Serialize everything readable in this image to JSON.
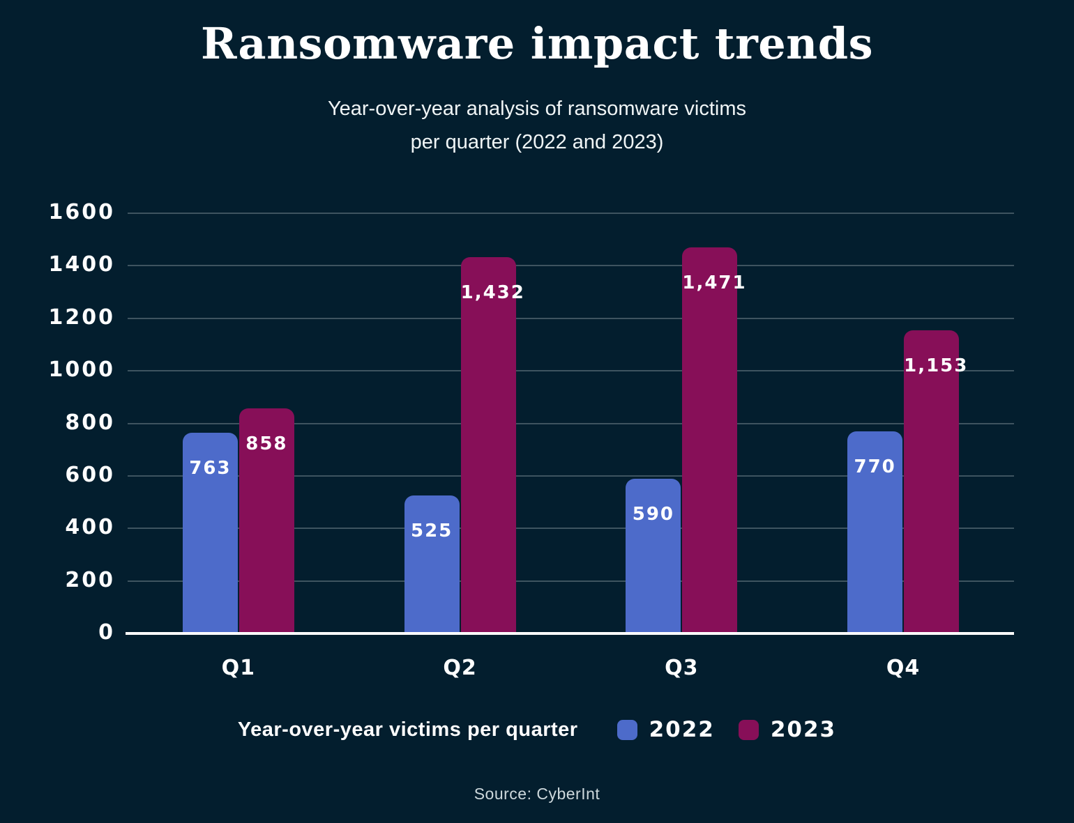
{
  "header": {
    "title": "Ransomware impact trends",
    "subtitle_line1": "Year-over-year analysis of ransomware victims",
    "subtitle_line2": "per quarter (2022 and 2023)"
  },
  "chart_data": {
    "type": "bar",
    "title": "Ransomware impact trends",
    "subtitle": "Year-over-year analysis of ransomware victims per quarter (2022 and 2023)",
    "categories": [
      "Q1",
      "Q2",
      "Q3",
      "Q4"
    ],
    "series": [
      {
        "name": "2022",
        "color": "#4D6BCA",
        "values": [
          763,
          525,
          590,
          770
        ]
      },
      {
        "name": "2023",
        "color": "#870F58",
        "values": [
          858,
          1432,
          1471,
          1153
        ]
      }
    ],
    "xlabel": "",
    "ylabel": "",
    "ylim": [
      0,
      1600
    ],
    "ytick_step": 200,
    "grid": true,
    "legend_position": "bottom",
    "value_labels_shown": true
  },
  "legend": {
    "title": "Year-over-year victims per quarter",
    "items": [
      {
        "label": "2022",
        "color": "#4D6BCA"
      },
      {
        "label": "2023",
        "color": "#870F58"
      }
    ]
  },
  "footer": {
    "source": "Source: CyberInt"
  },
  "colors": {
    "background": "#031E2E",
    "gridline": "#3E5460",
    "axis_line": "#FFFFFF",
    "text": "#FFFFFF",
    "bar_2022": "#4D6BCA",
    "bar_2023": "#870F58"
  }
}
